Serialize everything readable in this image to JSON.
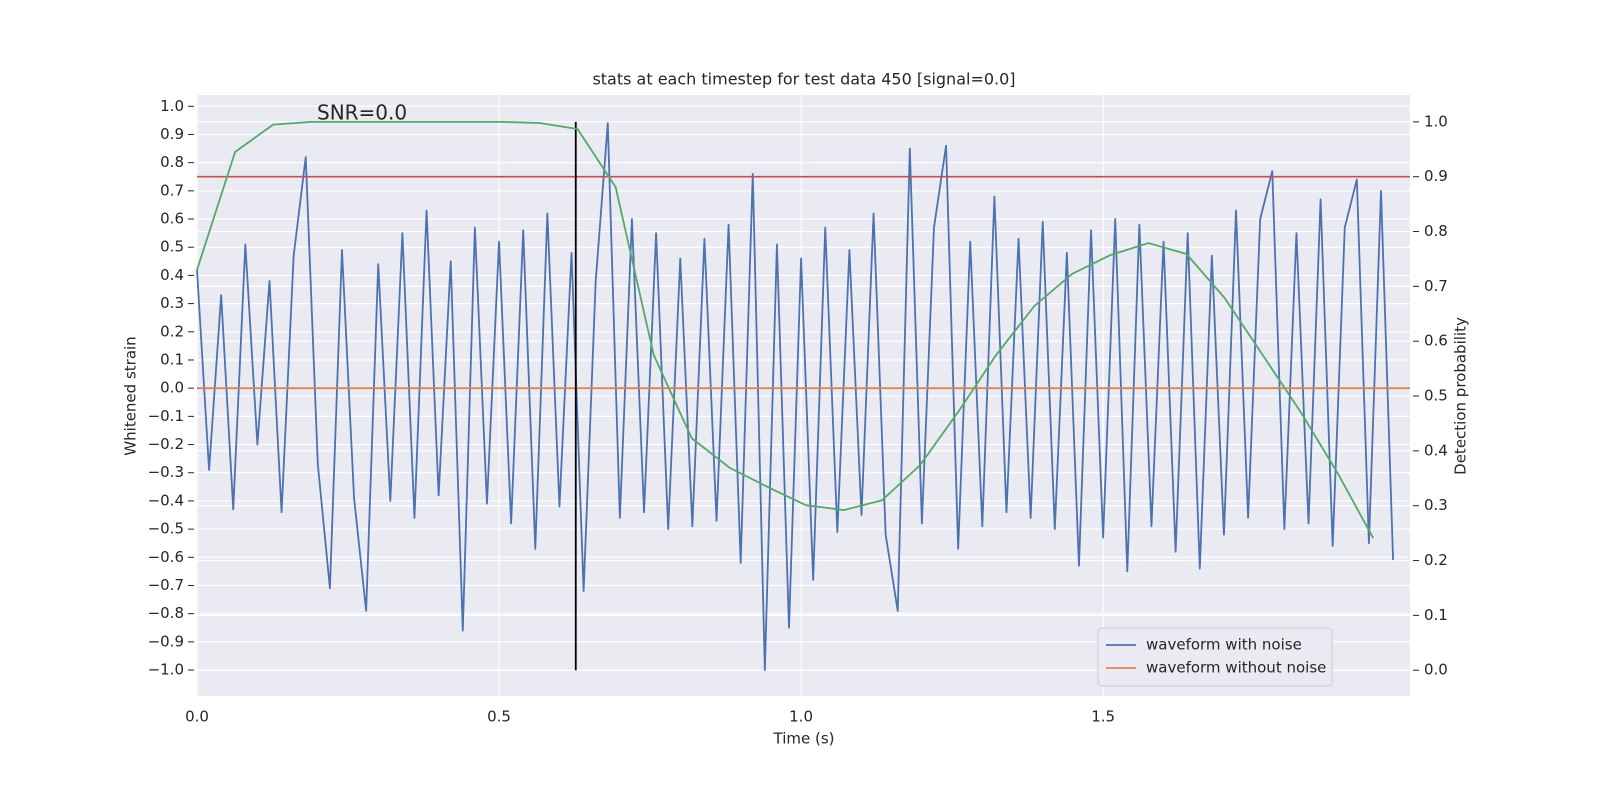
{
  "chart_data": {
    "type": "line",
    "title": "stats at each timestep for test data 450 [signal=0.0]",
    "xlabel": "Time (s)",
    "ylabel": "Whitened strain",
    "y2label": "Detection probability",
    "annotation": "SNR=0.0",
    "background": "#eaeaf2",
    "grid": true,
    "legend": "lower right",
    "xlim": [
      0,
      2.008
    ],
    "xticks": [
      {
        "value": 0,
        "label": "0.0"
      },
      {
        "value": 0.5,
        "label": "0.5"
      },
      {
        "value": 1,
        "label": "1.0"
      },
      {
        "value": 1.5,
        "label": "1.5"
      }
    ],
    "ylim": [
      -1.092,
      1.04
    ],
    "yticks": [
      {
        "value": -1,
        "label": "−1.0"
      },
      {
        "value": -0.9,
        "label": "−0.9"
      },
      {
        "value": -0.8,
        "label": "−0.8"
      },
      {
        "value": -0.7,
        "label": "−0.7"
      },
      {
        "value": -0.6,
        "label": "−0.6"
      },
      {
        "value": -0.5,
        "label": "−0.5"
      },
      {
        "value": -0.4,
        "label": "−0.4"
      },
      {
        "value": -0.3,
        "label": "−0.3"
      },
      {
        "value": -0.2,
        "label": "−0.2"
      },
      {
        "value": -0.1,
        "label": "−0.1"
      },
      {
        "value": 0,
        "label": "0.0"
      },
      {
        "value": 0.1,
        "label": "0.1"
      },
      {
        "value": 0.2,
        "label": "0.2"
      },
      {
        "value": 0.3,
        "label": "0.3"
      },
      {
        "value": 0.4,
        "label": "0.4"
      },
      {
        "value": 0.5,
        "label": "0.5"
      },
      {
        "value": 0.6,
        "label": "0.6"
      },
      {
        "value": 0.7,
        "label": "0.7"
      },
      {
        "value": 0.8,
        "label": "0.8"
      },
      {
        "value": 0.9,
        "label": "0.9"
      },
      {
        "value": 1,
        "label": "1.0"
      }
    ],
    "y2lim": [
      -0.047,
      1.049
    ],
    "y2ticks": [
      {
        "value": 0,
        "label": "0.0"
      },
      {
        "value": 0.1,
        "label": "0.1"
      },
      {
        "value": 0.2,
        "label": "0.2"
      },
      {
        "value": 0.3,
        "label": "0.3"
      },
      {
        "value": 0.4,
        "label": "0.4"
      },
      {
        "value": 0.5,
        "label": "0.5"
      },
      {
        "value": 0.6,
        "label": "0.6"
      },
      {
        "value": 0.7,
        "label": "0.7"
      },
      {
        "value": 0.8,
        "label": "0.8"
      },
      {
        "value": 0.9,
        "label": "0.9"
      },
      {
        "value": 1,
        "label": "1.0"
      }
    ],
    "series": [
      {
        "name": "waveform with noise",
        "color": "#4c72b0",
        "x": [
          0,
          0.02,
          0.04,
          0.06,
          0.08,
          0.1,
          0.12,
          0.14,
          0.16,
          0.18,
          0.2,
          0.22,
          0.24,
          0.26,
          0.28,
          0.3,
          0.32,
          0.34,
          0.36,
          0.38,
          0.4,
          0.42,
          0.44,
          0.46,
          0.48,
          0.5,
          0.52,
          0.54,
          0.56,
          0.58,
          0.6,
          0.62,
          0.64,
          0.66,
          0.68,
          0.7,
          0.72,
          0.74,
          0.76,
          0.78,
          0.8,
          0.82,
          0.84,
          0.86,
          0.88,
          0.9,
          0.92,
          0.94,
          0.96,
          0.98,
          1,
          1.02,
          1.04,
          1.06,
          1.08,
          1.1,
          1.12,
          1.14,
          1.16,
          1.18,
          1.2,
          1.22,
          1.24,
          1.26,
          1.28,
          1.3,
          1.32,
          1.34,
          1.36,
          1.38,
          1.4,
          1.42,
          1.44,
          1.46,
          1.48,
          1.5,
          1.52,
          1.54,
          1.56,
          1.58,
          1.6,
          1.62,
          1.64,
          1.66,
          1.68,
          1.7,
          1.72,
          1.74,
          1.76,
          1.78,
          1.8,
          1.82,
          1.84,
          1.86,
          1.88,
          1.9,
          1.92,
          1.94,
          1.96,
          1.98
        ],
        "values": [
          0.42,
          -0.29,
          0.33,
          -0.43,
          0.51,
          -0.2,
          0.38,
          -0.44,
          0.47,
          0.82,
          -0.27,
          -0.71,
          0.49,
          -0.39,
          -0.79,
          0.44,
          -0.4,
          0.55,
          -0.46,
          0.63,
          -0.38,
          0.45,
          -0.86,
          0.57,
          -0.41,
          0.52,
          -0.48,
          0.56,
          -0.57,
          0.62,
          -0.42,
          0.48,
          -0.72,
          0.38,
          0.94,
          -0.46,
          0.6,
          -0.44,
          0.55,
          -0.5,
          0.46,
          -0.49,
          0.53,
          -0.47,
          0.58,
          -0.62,
          0.76,
          -1.0,
          0.51,
          -0.85,
          0.46,
          -0.68,
          0.57,
          -0.51,
          0.49,
          -0.45,
          0.62,
          -0.52,
          -0.79,
          0.85,
          -0.48,
          0.57,
          0.86,
          -0.57,
          0.52,
          -0.49,
          0.68,
          -0.44,
          0.53,
          -0.46,
          0.59,
          -0.5,
          0.48,
          -0.63,
          0.56,
          -0.53,
          0.6,
          -0.65,
          0.58,
          -0.49,
          0.52,
          -0.58,
          0.55,
          -0.64,
          0.47,
          -0.52,
          0.63,
          -0.46,
          0.6,
          0.77,
          -0.5,
          0.55,
          -0.48,
          0.67,
          -0.56,
          0.57,
          0.74,
          -0.55,
          0.7,
          -0.61
        ]
      },
      {
        "name": "waveform without noise",
        "color": "#dd8452",
        "x": [
          0,
          2.008
        ],
        "values": [
          0,
          0
        ]
      },
      {
        "color": "#55a868",
        "axis": "y2",
        "x": [
          0,
          0.063,
          0.126,
          0.189,
          0.252,
          0.315,
          0.378,
          0.441,
          0.504,
          0.567,
          0.63,
          0.693,
          0.756,
          0.819,
          0.882,
          0.945,
          1.008,
          1.071,
          1.134,
          1.197,
          1.26,
          1.323,
          1.386,
          1.449,
          1.512,
          1.575,
          1.638,
          1.701,
          1.764,
          1.827,
          1.89,
          1.947
        ],
        "values": [
          0.73,
          0.945,
          0.995,
          1.0,
          1.0,
          1.0,
          1.0,
          1.0,
          1.0,
          0.998,
          0.987,
          0.881,
          0.575,
          0.423,
          0.369,
          0.334,
          0.301,
          0.292,
          0.31,
          0.374,
          0.471,
          0.575,
          0.664,
          0.723,
          0.757,
          0.779,
          0.759,
          0.679,
          0.575,
          0.471,
          0.356,
          0.241
        ]
      }
    ],
    "hlines": [
      {
        "value": 0.9,
        "axis": "y2",
        "color": "#c44e52"
      }
    ],
    "vlines": [
      {
        "x": 0.627,
        "y2range": [
          0,
          1
        ],
        "color": "#000000"
      }
    ]
  }
}
